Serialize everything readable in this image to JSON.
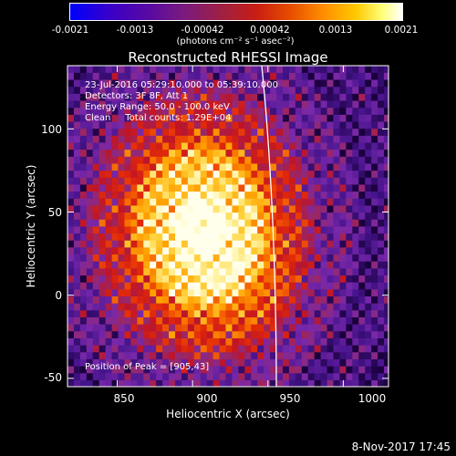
{
  "colorbar": {
    "ticks": [
      "-0.0021",
      "-0.0013",
      "-0.00042",
      "0.00042",
      "0.0013",
      "0.0021"
    ],
    "unit_label": "(photons cm⁻² s⁻¹ asec⁻²)"
  },
  "chart_data": {
    "type": "heatmap",
    "title": "Reconstructed RHESSI Image",
    "xlabel": "Heliocentric X (arcsec)",
    "ylabel": "Heliocentric Y (arcsec)",
    "xlim": [
      817,
      1030
    ],
    "ylim": [
      -55,
      138
    ],
    "x_ticks": [
      "850",
      "900",
      "950",
      "1000"
    ],
    "y_ticks": [
      "100",
      "50",
      "0",
      "-50"
    ],
    "info_lines": [
      "23-Jul-2016 05:29:10.000 to 05:39:10.000",
      "Detectors: 3F 8F, Att 1",
      "Energy Range: 50.0 - 100.0 keV",
      "Clean     Total counts: 1.29E+04"
    ],
    "peak_label": "Position of Peak = [905,43]",
    "peak": [
      905,
      43
    ],
    "solar_limb": true
  },
  "footer": {
    "date": "8-Nov-2017 17:45"
  }
}
